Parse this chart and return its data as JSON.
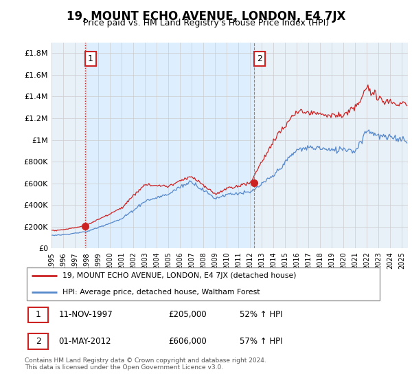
{
  "title": "19, MOUNT ECHO AVENUE, LONDON, E4 7JX",
  "subtitle": "Price paid vs. HM Land Registry's House Price Index (HPI)",
  "title_fontsize": 12,
  "subtitle_fontsize": 9,
  "ylim": [
    0,
    1900000
  ],
  "xlim_start": 1995.0,
  "xlim_end": 2025.5,
  "yticks": [
    0,
    200000,
    400000,
    600000,
    800000,
    1000000,
    1200000,
    1400000,
    1600000,
    1800000
  ],
  "ytick_labels": [
    "£0",
    "£200K",
    "£400K",
    "£600K",
    "£800K",
    "£1M",
    "£1.2M",
    "£1.4M",
    "£1.6M",
    "£1.8M"
  ],
  "xticks": [
    1995,
    1996,
    1997,
    1998,
    1999,
    2000,
    2001,
    2002,
    2003,
    2004,
    2005,
    2006,
    2007,
    2008,
    2009,
    2010,
    2011,
    2012,
    2013,
    2014,
    2015,
    2016,
    2017,
    2018,
    2019,
    2020,
    2021,
    2022,
    2023,
    2024,
    2025
  ],
  "hpi_color": "#5588cc",
  "sale_color": "#cc2222",
  "vline1_color": "#cc2222",
  "vline1_style": ":",
  "vline2_color": "#888888",
  "vline2_style": "--",
  "shade_color": "#ddeeff",
  "grid_color": "#cccccc",
  "background_color": "#ffffff",
  "legend_label_sale": "19, MOUNT ECHO AVENUE, LONDON, E4 7JX (detached house)",
  "legend_label_hpi": "HPI: Average price, detached house, Waltham Forest",
  "sale1_x": 1997.87,
  "sale1_y": 205000,
  "sale1_label": "1",
  "sale2_x": 2012.33,
  "sale2_y": 606000,
  "sale2_label": "2",
  "annotation1_date": "11-NOV-1997",
  "annotation1_price": "£205,000",
  "annotation1_hpi": "52% ↑ HPI",
  "annotation2_date": "01-MAY-2012",
  "annotation2_price": "£606,000",
  "annotation2_hpi": "57% ↑ HPI",
  "footer": "Contains HM Land Registry data © Crown copyright and database right 2024.\nThis data is licensed under the Open Government Licence v3.0."
}
